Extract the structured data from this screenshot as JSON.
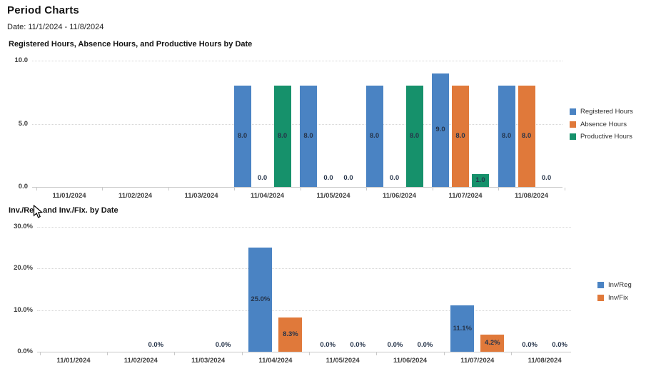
{
  "page": {
    "title": "Period Charts",
    "date_label": "Date: 11/1/2024 - 11/8/2024"
  },
  "colors": {
    "blue_series": "#4a83c3",
    "orange_series": "#e0793a",
    "green_series": "#16916b",
    "bar_label_text": "#26344a",
    "axis_text": "#3d3d3d"
  },
  "icons": {
    "mouse_cursor": "arrow-pointer"
  },
  "chart_data": [
    {
      "type": "bar",
      "title": "Registered Hours, Absence Hours, and Productive Hours by Date",
      "categories": [
        "11/01/2024",
        "11/02/2024",
        "11/03/2024",
        "11/04/2024",
        "11/05/2024",
        "11/06/2024",
        "11/07/2024",
        "11/08/2024"
      ],
      "y_ticks": [
        "0.0",
        "5.0",
        "10.0"
      ],
      "y_tick_values": [
        0,
        5,
        10
      ],
      "ylim": [
        0,
        10
      ],
      "grid": true,
      "legend_position": "right",
      "series": [
        {
          "name": "Registered Hours",
          "color": "#4a83c3",
          "values": [
            null,
            null,
            null,
            8,
            8,
            8,
            9,
            8
          ],
          "labels": [
            null,
            null,
            null,
            "8.0",
            "8.0",
            "8.0",
            "9.0",
            "8.0"
          ]
        },
        {
          "name": "Absence Hours",
          "color": "#e0793a",
          "values": [
            null,
            null,
            null,
            0,
            0,
            0,
            8,
            8
          ],
          "labels": [
            null,
            null,
            null,
            "0.0",
            "0.0",
            "0.0",
            "8.0",
            "8.0"
          ]
        },
        {
          "name": "Productive Hours",
          "color": "#16916b",
          "values": [
            null,
            null,
            null,
            8,
            0,
            8,
            1,
            0
          ],
          "labels": [
            null,
            null,
            null,
            "8.0",
            "0.0",
            "8.0",
            "1.0",
            "0.0"
          ]
        }
      ]
    },
    {
      "type": "bar",
      "title": "Inv./Reg. and Inv./Fix. by Date",
      "categories": [
        "11/01/2024",
        "11/02/2024",
        "11/03/2024",
        "11/04/2024",
        "11/05/2024",
        "11/06/2024",
        "11/07/2024",
        "11/08/2024"
      ],
      "y_ticks": [
        "0.0%",
        "10.0%",
        "20.0%",
        "30.0%"
      ],
      "y_tick_values": [
        0,
        10,
        20,
        30
      ],
      "ylim": [
        0,
        30
      ],
      "y_unit": "%",
      "grid": true,
      "legend_position": "right",
      "series": [
        {
          "name": "Inv/Reg",
          "color": "#4a83c3",
          "values": [
            null,
            null,
            null,
            25.0,
            0,
            0,
            11.1,
            0
          ],
          "labels": [
            null,
            null,
            null,
            "25.0%",
            "0.0%",
            "0.0%",
            "11.1%",
            "0.0%"
          ]
        },
        {
          "name": "Inv/Fix",
          "color": "#e0793a",
          "values": [
            null,
            0,
            0,
            8.3,
            0,
            0,
            4.2,
            0
          ],
          "labels": [
            null,
            "0.0%",
            "0.0%",
            "8.3%",
            "0.0%",
            "0.0%",
            "4.2%",
            "0.0%"
          ]
        }
      ]
    }
  ]
}
